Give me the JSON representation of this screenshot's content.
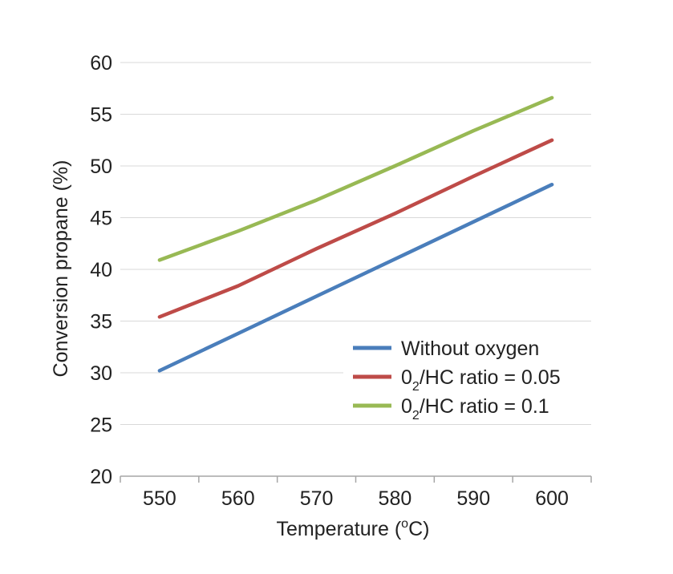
{
  "chart_data": {
    "type": "line",
    "title": "",
    "xlabel": "Temperature (",
    "xlabel_sup": "o",
    "xlabel_tail": "C)",
    "ylabel": "Conversion propane (%)",
    "x": [
      550,
      560,
      570,
      580,
      590,
      600
    ],
    "xticks": [
      "550",
      "560",
      "570",
      "580",
      "590",
      "600"
    ],
    "yticks": [
      "20",
      "25",
      "30",
      "35",
      "40",
      "45",
      "50",
      "55",
      "60"
    ],
    "xlim": [
      545,
      605
    ],
    "ylim": [
      20,
      60
    ],
    "grid": true,
    "legend_position": "lower-right",
    "series": [
      {
        "name": "Without oxygen",
        "color": "#4a7ebb",
        "values": [
          30.2,
          33.8,
          37.4,
          41.0,
          44.6,
          48.2
        ]
      },
      {
        "name_prefix": "0",
        "name_sub": "2",
        "name_suffix": "/HC ratio = 0.05",
        "color": "#be4b48",
        "values": [
          35.4,
          38.4,
          42.0,
          45.4,
          49.0,
          52.5
        ]
      },
      {
        "name_prefix": "0",
        "name_sub": "2",
        "name_suffix": "/HC ratio = 0.1",
        "color": "#98b954",
        "values": [
          40.9,
          43.7,
          46.7,
          50.0,
          53.4,
          56.6
        ]
      }
    ]
  }
}
